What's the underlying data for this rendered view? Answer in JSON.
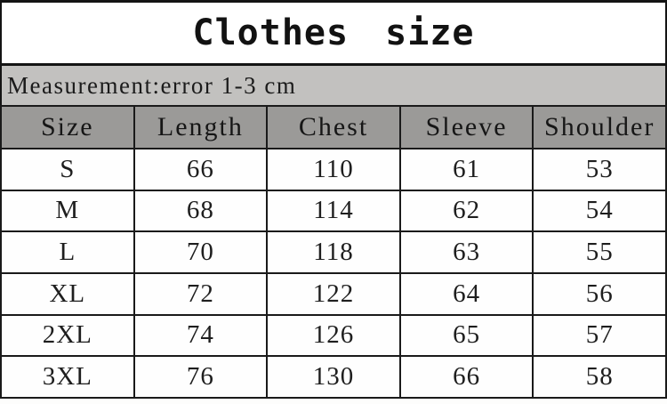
{
  "chart_data": {
    "type": "table",
    "title": "Clothes size",
    "note": "Measurement:error 1-3 cm",
    "columns": [
      "Size",
      "Length",
      "Chest",
      "Sleeve",
      "Shoulder"
    ],
    "rows": [
      [
        "S",
        "66",
        "110",
        "61",
        "53"
      ],
      [
        "M",
        "68",
        "114",
        "62",
        "54"
      ],
      [
        "L",
        "70",
        "118",
        "63",
        "55"
      ],
      [
        "XL",
        "72",
        "122",
        "64",
        "56"
      ],
      [
        "2XL",
        "74",
        "126",
        "65",
        "57"
      ],
      [
        "3XL",
        "76",
        "130",
        "66",
        "58"
      ]
    ],
    "unit_hint": "cm"
  },
  "colors": {
    "banner_bg": "#c2c1bf",
    "header_bg": "#9b9a98",
    "border": "#1a1a1a",
    "text": "#1b1b1b",
    "cell_bg": "#fefefe"
  }
}
